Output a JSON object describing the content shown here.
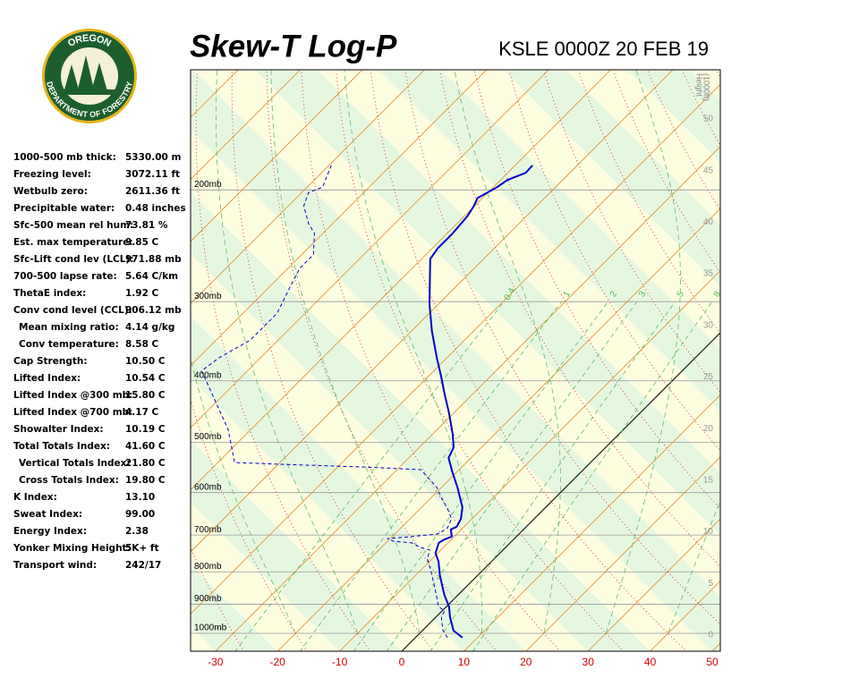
{
  "logo": {
    "top": "OREGON",
    "bottom": "DEPARTMENT OF FORESTRY"
  },
  "title": "Skew-T Log-P",
  "station": "KSLE 0000Z 20 FEB 19",
  "indices": [
    {
      "label": "1000-500 mb thick:",
      "value": "5330.00 m"
    },
    {
      "label": "Freezing level:",
      "value": "3072.11 ft"
    },
    {
      "label": "Wetbulb zero:",
      "value": "2611.36 ft"
    },
    {
      "label": "Precipitable water:",
      "value": "0.48 inches"
    },
    {
      "label": "Sfc-500 mean rel hum:",
      "value": "73.81 %"
    },
    {
      "label": "Est. max temperature:",
      "value": "9.85 C"
    },
    {
      "label": "Sfc-Lift cond lev (LCL):",
      "value": "971.88 mb"
    },
    {
      "label": "700-500 lapse rate:",
      "value": "5.64 C/km"
    },
    {
      "label": "ThetaE index:",
      "value": "1.92 C"
    },
    {
      "label": "Conv cond level (CCL):",
      "value": "906.12 mb"
    },
    {
      "label": "Mean mixing ratio:",
      "value": "4.14 g/kg"
    },
    {
      "label": "Conv temperature:",
      "value": "8.58 C"
    },
    {
      "label": "Cap Strength:",
      "value": "10.50 C"
    },
    {
      "label": "Lifted Index:",
      "value": "10.54 C"
    },
    {
      "label": "Lifted Index @300 mb:",
      "value": "15.80 C"
    },
    {
      "label": "Lifted Index @700 mb:",
      "value": "4.17 C"
    },
    {
      "label": "Showalter Index:",
      "value": "10.19 C"
    },
    {
      "label": "Total Totals Index:",
      "value": "41.60 C"
    },
    {
      "label": "Vertical Totals Index:",
      "value": "21.80 C"
    },
    {
      "label": "Cross Totals Index:",
      "value": "19.80 C"
    },
    {
      "label": "K Index:",
      "value": "13.10"
    },
    {
      "label": "Sweat Index:",
      "value": "99.00"
    },
    {
      "label": "Energy Index:",
      "value": "2.38"
    },
    {
      "label": "Yonker Mixing Height:",
      "value": "5K+ ft"
    },
    {
      "label": "Transport wind:",
      "value": "242/17"
    }
  ],
  "chart_data": {
    "type": "skewt",
    "xticks": [
      -30,
      -20,
      -10,
      0,
      10,
      20,
      30,
      40,
      50
    ],
    "yticks": [
      {
        "value": 200,
        "label": "200mb"
      },
      {
        "value": 300,
        "label": "300mb"
      },
      {
        "value": 400,
        "label": "400mb"
      },
      {
        "value": 500,
        "label": "500mb"
      },
      {
        "value": 600,
        "label": "600mb"
      },
      {
        "value": 700,
        "label": "700mb"
      },
      {
        "value": 800,
        "label": "800mb"
      },
      {
        "value": 900,
        "label": "900mb"
      },
      {
        "value": 1000,
        "label": "1000mb"
      }
    ],
    "log_y": true,
    "height_axis": {
      "title": "Height",
      "unit": "(1000ft)",
      "ticks": [
        0,
        5,
        10,
        15,
        20,
        25,
        30,
        35,
        40,
        45,
        50
      ]
    },
    "mixing_ratio_labels": [
      0.4,
      1,
      2,
      3,
      5,
      8
    ],
    "temperature": {
      "color": "#0000cc",
      "pressure": [
        1016,
        990,
        943,
        907,
        870,
        810,
        771,
        747,
        720,
        711,
        704,
        686,
        679,
        660,
        633,
        589,
        557,
        529,
        509,
        485,
        450,
        419,
        393,
        368,
        334,
        303,
        257,
        247,
        235,
        220,
        212,
        206,
        198,
        193,
        188,
        183
      ],
      "values": [
        7.6,
        5.0,
        2.3,
        0.4,
        -2.2,
        -6.1,
        -8.5,
        -10.4,
        -11.5,
        -11.1,
        -10.4,
        -11.7,
        -11.2,
        -11.8,
        -13.4,
        -17.4,
        -20.7,
        -23.6,
        -24.5,
        -26.8,
        -30.7,
        -34.6,
        -38.0,
        -41.6,
        -46.7,
        -51.4,
        -58.6,
        -59.1,
        -59.1,
        -59.5,
        -60.1,
        -60.8,
        -59.4,
        -58.9,
        -57.1,
        -57.2
      ]
    },
    "dewpoint": {
      "color": "#0000cc",
      "pressure": [
        1016,
        990,
        943,
        922,
        907,
        870,
        802,
        764,
        739,
        732,
        720,
        716,
        709,
        704,
        697,
        682,
        660,
        635,
        608,
        589,
        552,
        547,
        543,
        538,
        477,
        399,
        386,
        368,
        345,
        313,
        284,
        266,
        253,
        234,
        226,
        212,
        202,
        198,
        183
      ],
      "values": [
        5.2,
        3.3,
        0.9,
        0.4,
        -1.3,
        -3.5,
        -7.9,
        -10.7,
        -11.8,
        -13.7,
        -15.9,
        -19.0,
        -20.5,
        -16.9,
        -13.0,
        -12.5,
        -13.3,
        -15.7,
        -18.7,
        -20.7,
        -26.2,
        -35.3,
        -45.7,
        -57.3,
        -63.7,
        -75.2,
        -77.4,
        -76.7,
        -74.5,
        -74.5,
        -76.7,
        -78.1,
        -78.1,
        -81.4,
        -83.9,
        -87.5,
        -88.9,
        -87.5,
        -89.6
      ]
    }
  }
}
